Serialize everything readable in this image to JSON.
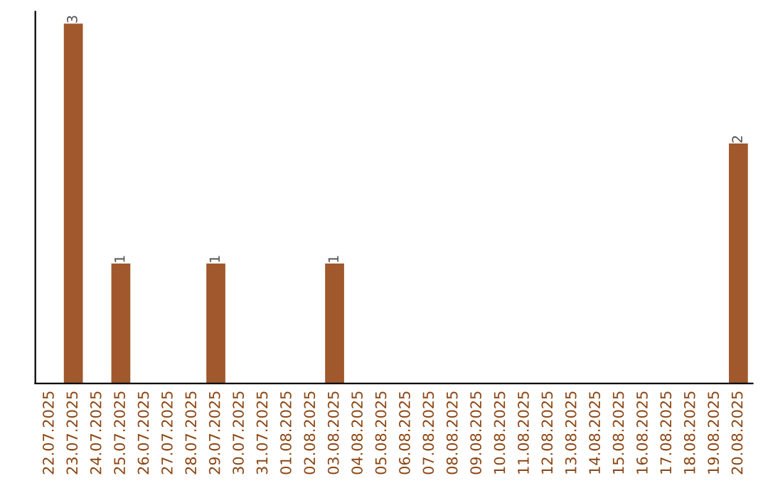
{
  "chart_data": {
    "type": "bar",
    "categories": [
      "22.07.2025",
      "23.07.2025",
      "24.07.2025",
      "25.07.2025",
      "26.07.2025",
      "27.07.2025",
      "28.07.2025",
      "29.07.2025",
      "30.07.2025",
      "31.07.2025",
      "01.08.2025",
      "02.08.2025",
      "03.08.2025",
      "04.08.2025",
      "05.08.2025",
      "06.08.2025",
      "07.08.2025",
      "08.08.2025",
      "09.08.2025",
      "10.08.2025",
      "11.08.2025",
      "12.08.2025",
      "13.08.2025",
      "14.08.2025",
      "15.08.2025",
      "16.08.2025",
      "17.08.2025",
      "18.08.2025",
      "19.08.2025",
      "20.08.2025"
    ],
    "values": [
      0,
      3,
      0,
      1,
      0,
      0,
      0,
      1,
      0,
      0,
      0,
      0,
      1,
      0,
      0,
      0,
      0,
      0,
      0,
      0,
      0,
      0,
      0,
      0,
      0,
      0,
      0,
      0,
      0,
      2
    ],
    "value_labels": [
      null,
      "3",
      null,
      "1",
      null,
      null,
      null,
      "1",
      null,
      null,
      null,
      null,
      "1",
      null,
      null,
      null,
      null,
      null,
      null,
      null,
      null,
      null,
      null,
      null,
      null,
      null,
      null,
      null,
      null,
      "2"
    ],
    "color": "#a0582c",
    "ylim": [
      0,
      3.1
    ],
    "tick_labels": "x",
    "grid": false,
    "legend": false
  }
}
